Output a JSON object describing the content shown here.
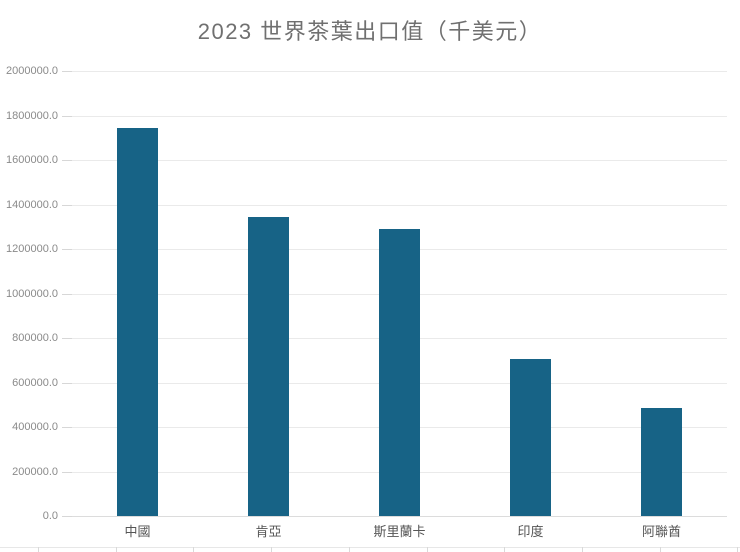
{
  "window": {
    "background": "#ffffff"
  },
  "chart_data": {
    "type": "bar",
    "title": "2023 世界茶葉出口值（千美元）",
    "categories": [
      "中國",
      "肯亞",
      "斯里蘭卡",
      "印度",
      "阿聯酋"
    ],
    "values": [
      1745000,
      1345000,
      1290000,
      705000,
      485000
    ],
    "xlabel": "",
    "ylabel": "",
    "ylim": [
      0,
      2000000
    ],
    "ytick_step": 200000,
    "ytick_labels": [
      "0.0",
      "200000.0",
      "400000.0",
      "600000.0",
      "800000.0",
      "1000000.0",
      "1200000.0",
      "1400000.0",
      "1600000.0",
      "1800000.0",
      "2000000.0"
    ],
    "grid": true,
    "legend_position": "none",
    "bar_color": "#176386",
    "gridline_color": "#eaeaea",
    "axis_label_color": "#8a8a8a",
    "category_label_color": "#555555",
    "title_color": "#707070"
  }
}
